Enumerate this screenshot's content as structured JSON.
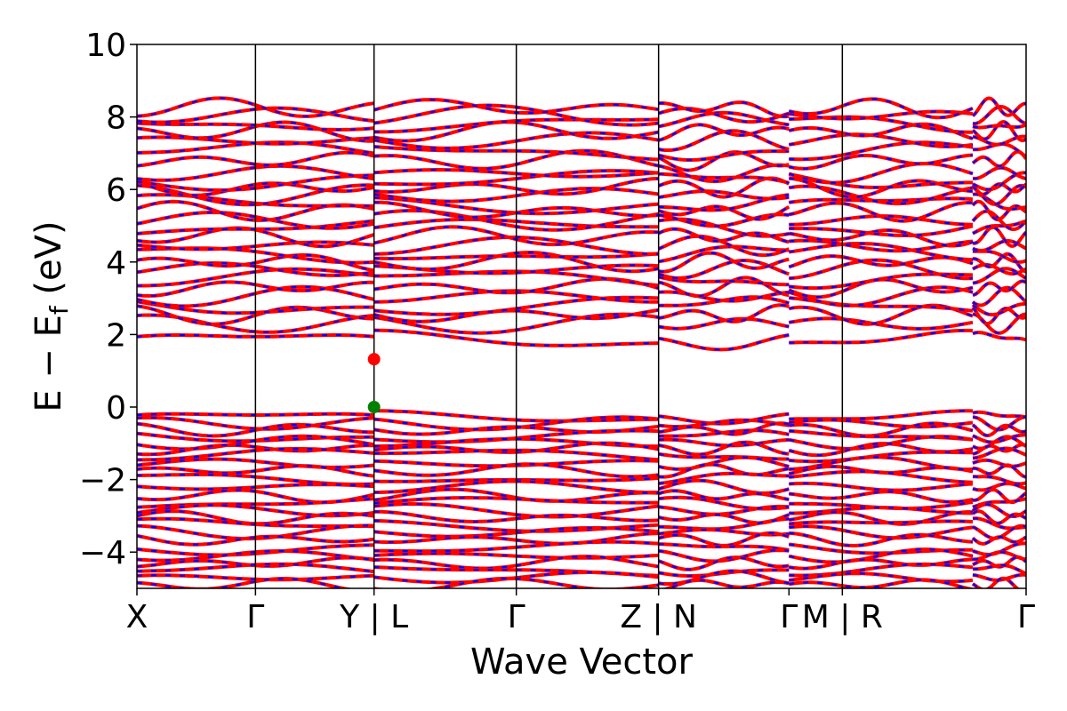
{
  "chart_data": {
    "type": "line",
    "xlabel": "Wave Vector",
    "ylabel": "E − E",
    "ylabel_subscript": "f",
    "ylabel_unit": " (eV)",
    "ylim": [
      -5,
      10
    ],
    "yticks": [
      -4,
      -2,
      0,
      2,
      4,
      6,
      8,
      10
    ],
    "ytick_labels": [
      "−4",
      "−2",
      "0",
      "2",
      "4",
      "6",
      "8",
      "10"
    ],
    "xlim": [
      0,
      7.5
    ],
    "segment_boundaries": [
      2.0,
      4.4,
      5.5,
      7.05
    ],
    "high_symmetry_points": [
      {
        "x": 0.0,
        "label": "X"
      },
      {
        "x": 1.0,
        "label": "Γ"
      },
      {
        "x": 2.0,
        "label": "Y | L"
      },
      {
        "x": 3.2,
        "label": "Γ"
      },
      {
        "x": 4.4,
        "label": "Z | N"
      },
      {
        "x": 5.5,
        "label": "Γ"
      },
      {
        "x": 5.95,
        "label": "M | R"
      },
      {
        "x": 7.5,
        "label": "Γ"
      }
    ],
    "vertical_lines": [
      1.0,
      2.0,
      3.2,
      4.4,
      5.95
    ],
    "series_colors": {
      "spin_up": "#ff0000",
      "spin_down": "#0000ff"
    },
    "special_points": [
      {
        "name": "cbm",
        "x": 2.0,
        "y": 1.32,
        "color": "#ff0000"
      },
      {
        "name": "vbm",
        "x": 2.0,
        "y": 0.0,
        "color": "#008000"
      }
    ],
    "band_levels": {
      "conduction": [
        1.85,
        2.3,
        2.55,
        2.8,
        3.05,
        3.3,
        3.55,
        3.8,
        4.0,
        4.25,
        4.45,
        4.7,
        4.95,
        5.15,
        5.4,
        5.6,
        5.85,
        6.05,
        6.25,
        6.45,
        6.8,
        7.05,
        7.35,
        7.6,
        7.85,
        8.05,
        8.25
      ],
      "valence": [
        -0.28,
        -0.45,
        -0.62,
        -0.8,
        -0.98,
        -1.15,
        -1.32,
        -1.55,
        -1.75,
        -1.95,
        -2.2,
        -2.45,
        -2.65,
        -2.85,
        -3.05,
        -3.25,
        -3.45,
        -3.65,
        -3.9,
        -4.1,
        -4.3,
        -4.5,
        -4.7,
        -4.9
      ]
    },
    "band_wiggle_amplitudes": {
      "conduction": 0.18,
      "valence": 0.12
    }
  }
}
